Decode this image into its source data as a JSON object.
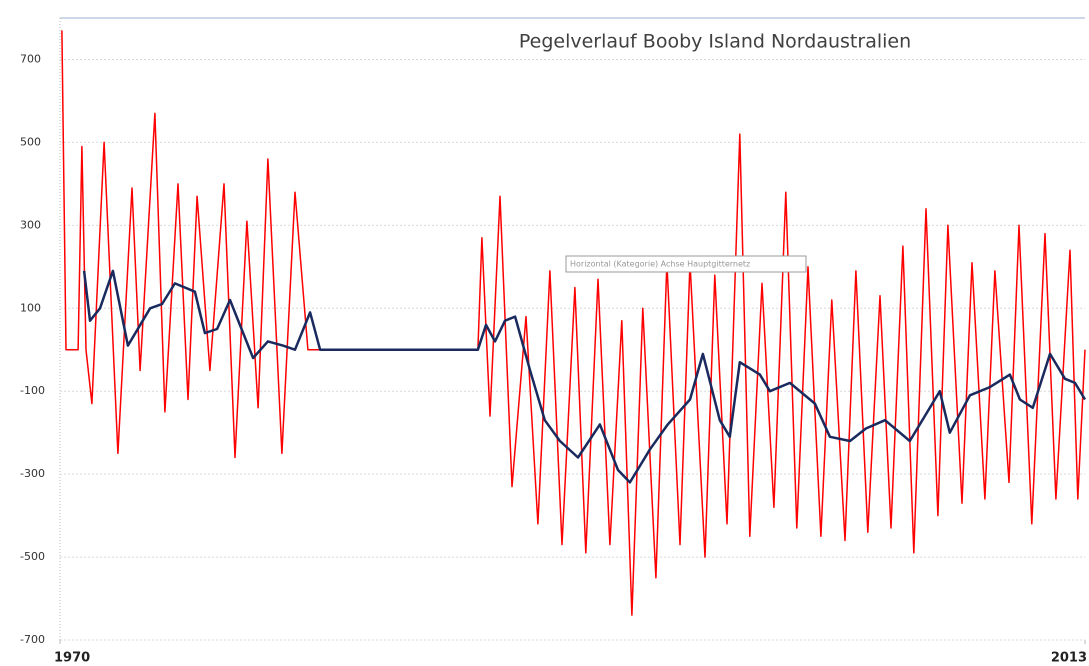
{
  "chart_data": {
    "type": "line",
    "title": "Pegelverlauf Booby Island  Nordaustralien",
    "annotation": "Horizontal (Kategorie) Achse Hauptgitternetz",
    "xlim": [
      1970,
      2013
    ],
    "xticks": [
      1970,
      2013
    ],
    "ylim": [
      -700,
      800
    ],
    "yticks": [
      700,
      500,
      300,
      100,
      -100,
      -300,
      -500,
      -700
    ],
    "grid": true,
    "series": [
      {
        "color": "#ff0000",
        "x": [
          1970.08,
          1970.25,
          1970.76,
          1970.92,
          1971.09,
          1971.34,
          1971.85,
          1972.43,
          1973.02,
          1973.36,
          1973.98,
          1974.4,
          1974.95,
          1975.37,
          1975.75,
          1976.29,
          1976.88,
          1977.34,
          1977.84,
          1978.31,
          1978.72,
          1979.31,
          1979.86,
          1980.4,
          1987.53,
          1987.7,
          1988.04,
          1988.46,
          1988.96,
          1989.55,
          1990.05,
          1990.55,
          1991.06,
          1991.6,
          1992.06,
          1992.57,
          1993.07,
          1993.57,
          1993.99,
          1994.45,
          1995.0,
          1995.46,
          1996.01,
          1996.43,
          1997.06,
          1997.47,
          1997.98,
          1998.52,
          1998.94,
          1999.45,
          1999.95,
          2000.45,
          2000.91,
          2001.38,
          2001.92,
          2002.38,
          2002.93,
          2003.39,
          2003.89,
          2004.4,
          2004.86,
          2005.36,
          2005.82,
          2006.33,
          2006.83,
          2007.25,
          2007.84,
          2008.26,
          2008.8,
          2009.22,
          2009.81,
          2010.23,
          2010.77,
          2011.32,
          2011.78,
          2012.37,
          2012.7,
          2013.0
        ],
        "values": [
          770,
          0,
          0,
          490,
          0,
          -130,
          500,
          -250,
          390,
          -50,
          570,
          -150,
          400,
          -120,
          370,
          -50,
          400,
          -260,
          310,
          -140,
          460,
          -250,
          380,
          0,
          0,
          270,
          -160,
          370,
          -330,
          80,
          -420,
          190,
          -470,
          150,
          -490,
          170,
          -470,
          70,
          -640,
          100,
          -550,
          210,
          -470,
          210,
          -500,
          180,
          -420,
          520,
          -450,
          160,
          -380,
          380,
          -430,
          200,
          -450,
          120,
          -460,
          190,
          -440,
          130,
          -430,
          250,
          -490,
          340,
          -400,
          300,
          -370,
          210,
          -360,
          190,
          -320,
          300,
          -420,
          280,
          -360,
          240,
          -360,
          0
        ]
      },
      {
        "color": "#1a2a5e",
        "x": [
          1971.01,
          1971.26,
          1971.68,
          1972.22,
          1972.85,
          1973.78,
          1974.28,
          1974.82,
          1975.66,
          1976.08,
          1976.59,
          1977.13,
          1978.1,
          1978.72,
          1979.35,
          1979.86,
          1980.49,
          1980.91,
          1987.53,
          1987.87,
          1988.25,
          1988.67,
          1989.09,
          1989.72,
          1990.34,
          1990.97,
          1991.73,
          1992.65,
          1993.41,
          1993.91,
          1994.75,
          1995.5,
          1996.43,
          1996.97,
          1997.68,
          1998.1,
          1998.52,
          1999.36,
          1999.78,
          2000.62,
          2001.67,
          2002.3,
          2003.14,
          2003.81,
          2004.61,
          2005.65,
          2006.28,
          2006.91,
          2007.33,
          2008.17,
          2009.01,
          2009.85,
          2010.27,
          2010.81,
          2011.53,
          2012.16,
          2012.58,
          2013.0
        ],
        "values": [
          190,
          70,
          100,
          190,
          10,
          100,
          110,
          160,
          140,
          40,
          50,
          120,
          -20,
          20,
          10,
          0,
          90,
          0,
          0,
          60,
          20,
          70,
          80,
          -50,
          -170,
          -220,
          -260,
          -180,
          -290,
          -320,
          -240,
          -180,
          -120,
          -10,
          -170,
          -210,
          -30,
          -60,
          -100,
          -80,
          -130,
          -210,
          -220,
          -190,
          -170,
          -220,
          -160,
          -100,
          -200,
          -110,
          -90,
          -60,
          -120,
          -140,
          -10,
          -70,
          -80,
          -120
        ]
      }
    ]
  }
}
